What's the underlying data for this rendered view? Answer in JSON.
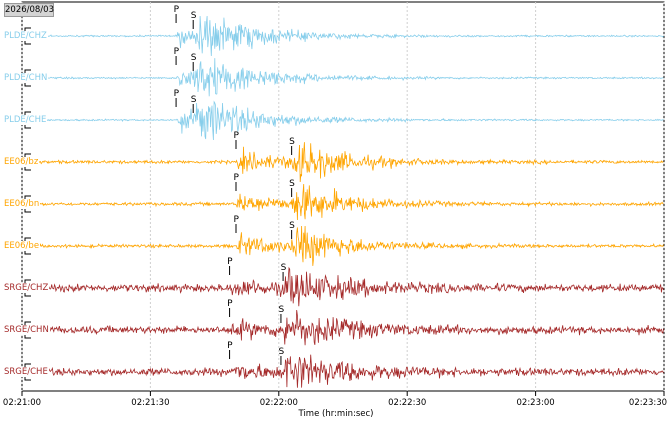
{
  "date_label": "2026/08/03",
  "colors": {
    "PLDE": "#87ceeb",
    "EE06": "#ffa500",
    "SRGE": "#a52a2a"
  },
  "chart_data": {
    "type": "line",
    "title": "",
    "xlabel": "Time (hr:min:sec)",
    "ylabel": "",
    "xlim_sec": [
      0,
      150
    ],
    "x_tick_values_sec": [
      0,
      30,
      60,
      90,
      120,
      150
    ],
    "x_tick_labels": [
      "02:21:00",
      "02:21:30",
      "02:22:00",
      "02:22:30",
      "02:23:00",
      "02:23:30"
    ],
    "grid": "vertical",
    "pick_labels": {
      "p": "P",
      "s": "S"
    },
    "series": [
      {
        "name": "PLDE/CHZ",
        "station": "PLDE",
        "p_sec": 36.0,
        "s_sec": 40.0
      },
      {
        "name": "PLDE/CHN",
        "station": "PLDE",
        "p_sec": 36.0,
        "s_sec": 40.0
      },
      {
        "name": "PLDE/CHE",
        "station": "PLDE",
        "p_sec": 36.0,
        "s_sec": 40.0
      },
      {
        "name": "EE06/bz",
        "station": "EE06",
        "p_sec": 50.0,
        "s_sec": 63.0
      },
      {
        "name": "EE06/bn",
        "station": "EE06",
        "p_sec": 50.0,
        "s_sec": 63.0
      },
      {
        "name": "EE06/be",
        "station": "EE06",
        "p_sec": 50.0,
        "s_sec": 63.0
      },
      {
        "name": "SRGE/CHZ",
        "station": "SRGE",
        "p_sec": 48.5,
        "s_sec": 61.0
      },
      {
        "name": "SRGE/CHN",
        "station": "SRGE",
        "p_sec": 48.5,
        "s_sec": 60.5
      },
      {
        "name": "SRGE/CHE",
        "station": "SRGE",
        "p_sec": 48.5,
        "s_sec": 60.5
      }
    ]
  }
}
